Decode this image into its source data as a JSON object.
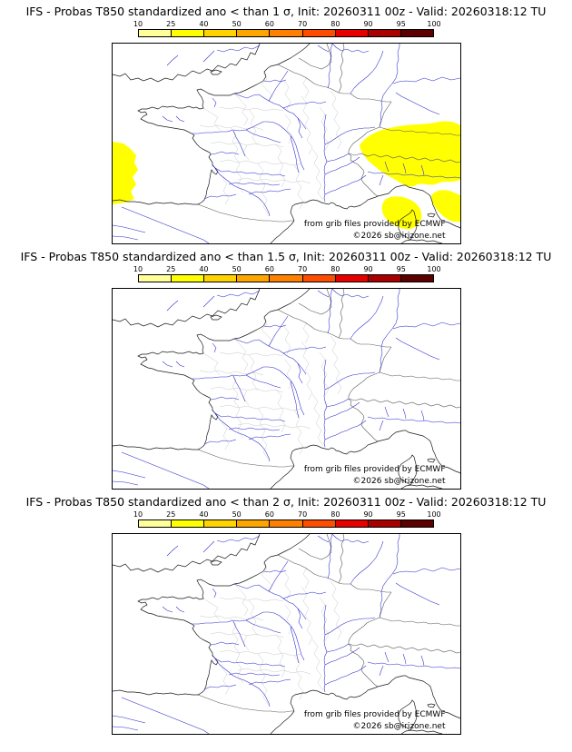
{
  "panels": [
    {
      "id": "sigma-1",
      "title": "IFS - Probas T850  standardized ano < than 1 σ, Init: 20260311 00z - Valid: 20260318:12 TU"
    },
    {
      "id": "sigma-1.5",
      "title": "IFS - Probas T850  standardized ano < than 1.5 σ, Init: 20260311 00z - Valid: 20260318:12 TU"
    },
    {
      "id": "sigma-2",
      "title": "IFS - Probas T850  standardized ano < than 2 σ, Init: 20260311 00z - Valid: 20260318:12 TU"
    }
  ],
  "colorbar": {
    "ticks": [
      "10",
      "25",
      "40",
      "50",
      "60",
      "70",
      "80",
      "90",
      "95",
      "100"
    ],
    "colors": [
      "#ffff99",
      "#ffff00",
      "#ffd300",
      "#ffa500",
      "#ff7f00",
      "#ff4d00",
      "#e60000",
      "#a80000",
      "#5c0000"
    ]
  },
  "credits": {
    "source": "from grib files provided by ECMWF",
    "copyright": "©2026 sb@irizone.net"
  },
  "map": {
    "shading_color": "#ffff00",
    "coast_color": "#1a1a1a",
    "border_color": "#5a5a5a",
    "department_color": "#c9c9c9",
    "river_color": "#2a2ace"
  }
}
